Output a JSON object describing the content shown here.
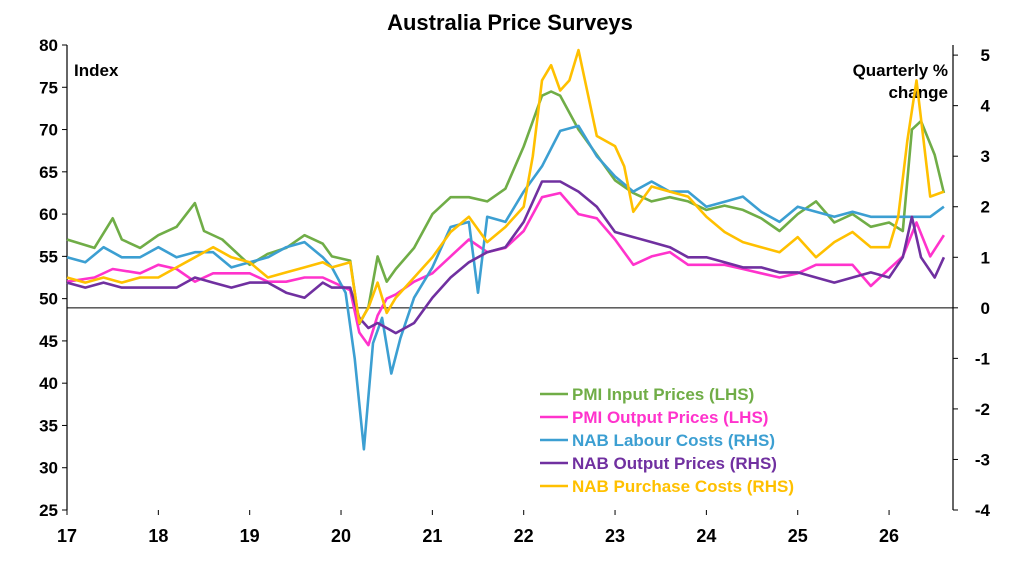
{
  "chart_data": {
    "type": "line",
    "title": "Australia Price Surveys",
    "left_axis_label": "Index",
    "right_axis_label_lines": [
      "Quarterly %",
      "change"
    ],
    "x_ticks": [
      "17",
      "18",
      "19",
      "20",
      "21",
      "22",
      "23",
      "24",
      "25",
      "26"
    ],
    "x_range": [
      2017,
      2026.7
    ],
    "left_ylim": [
      25,
      80
    ],
    "left_yticks": [
      25,
      30,
      35,
      40,
      45,
      50,
      55,
      60,
      65,
      70,
      75,
      80
    ],
    "right_ylim": [
      -4,
      5.2
    ],
    "right_yticks": [
      -4,
      -3,
      -2,
      -1,
      0,
      1,
      2,
      3,
      4,
      5
    ],
    "reference_line_at_right": 0,
    "grid": false,
    "legend_position": "bottom-right",
    "series": [
      {
        "name": "PMI Input Prices (LHS)",
        "axis": "left",
        "color": "#70ad47",
        "x": [
          2017.0,
          2017.3,
          2017.5,
          2017.6,
          2017.8,
          2018.0,
          2018.2,
          2018.4,
          2018.5,
          2018.7,
          2018.9,
          2019.0,
          2019.2,
          2019.4,
          2019.6,
          2019.8,
          2019.9,
          2020.1,
          2020.2,
          2020.3,
          2020.4,
          2020.5,
          2020.6,
          2020.8,
          2021.0,
          2021.2,
          2021.4,
          2021.6,
          2021.8,
          2022.0,
          2022.2,
          2022.3,
          2022.4,
          2022.6,
          2022.8,
          2023.0,
          2023.2,
          2023.4,
          2023.6,
          2023.8,
          2024.0,
          2024.2,
          2024.4,
          2024.6,
          2024.8,
          2025.0,
          2025.2,
          2025.4,
          2025.6,
          2025.8,
          2026.0,
          2026.15,
          2026.25,
          2026.35,
          2026.5,
          2026.6
        ],
        "values": [
          57,
          56,
          59.5,
          57,
          56,
          57.5,
          58.5,
          61.3,
          58,
          57,
          55,
          54,
          55.3,
          56,
          57.5,
          56.5,
          55,
          54.5,
          47,
          49,
          55,
          52,
          53.5,
          56,
          60,
          62,
          62,
          61.5,
          63,
          68,
          74,
          74.5,
          74,
          70,
          67,
          64,
          62.5,
          61.5,
          62,
          61.5,
          60.5,
          61,
          60.5,
          59.5,
          58,
          60,
          61.5,
          59,
          60,
          58.5,
          59,
          58,
          70,
          71,
          67,
          62.5
        ]
      },
      {
        "name": "PMI Output Prices (LHS)",
        "axis": "left",
        "color": "#ff33cc",
        "x": [
          2017.0,
          2017.3,
          2017.5,
          2017.8,
          2018.0,
          2018.2,
          2018.4,
          2018.6,
          2018.8,
          2019.0,
          2019.2,
          2019.4,
          2019.6,
          2019.8,
          2019.9,
          2020.1,
          2020.2,
          2020.3,
          2020.4,
          2020.5,
          2020.6,
          2020.8,
          2021.0,
          2021.2,
          2021.4,
          2021.6,
          2021.8,
          2022.0,
          2022.2,
          2022.4,
          2022.6,
          2022.8,
          2023.0,
          2023.2,
          2023.4,
          2023.6,
          2023.8,
          2024.0,
          2024.2,
          2024.4,
          2024.6,
          2024.8,
          2025.0,
          2025.2,
          2025.4,
          2025.6,
          2025.8,
          2026.0,
          2026.15,
          2026.3,
          2026.45,
          2026.6
        ],
        "values": [
          52,
          52.5,
          53.5,
          53,
          54,
          53.5,
          52,
          53,
          53,
          53,
          52,
          52,
          52.5,
          52.5,
          52,
          51,
          46,
          44.5,
          48,
          50,
          50.5,
          52,
          53,
          55,
          57,
          55.5,
          56,
          58,
          62,
          62.5,
          60,
          59.5,
          57,
          54,
          55,
          55.5,
          54,
          54,
          54,
          53.5,
          53,
          52.5,
          53,
          54,
          54,
          54,
          51.5,
          53.5,
          55,
          59,
          55,
          57.5
        ]
      },
      {
        "name": "NAB Labour Costs (RHS)",
        "axis": "right",
        "color": "#3c9fd2",
        "x": [
          2017.0,
          2017.2,
          2017.4,
          2017.6,
          2017.8,
          2018.0,
          2018.2,
          2018.4,
          2018.6,
          2018.8,
          2019.0,
          2019.2,
          2019.4,
          2019.6,
          2019.8,
          2019.9,
          2020.05,
          2020.15,
          2020.25,
          2020.35,
          2020.45,
          2020.55,
          2020.65,
          2020.8,
          2021.0,
          2021.2,
          2021.4,
          2021.5,
          2021.6,
          2021.8,
          2022.0,
          2022.2,
          2022.4,
          2022.6,
          2022.8,
          2023.0,
          2023.2,
          2023.4,
          2023.6,
          2023.8,
          2024.0,
          2024.2,
          2024.4,
          2024.6,
          2024.8,
          2025.0,
          2025.2,
          2025.4,
          2025.6,
          2025.8,
          2026.0,
          2026.15,
          2026.3,
          2026.45,
          2026.6
        ],
        "values": [
          1.0,
          0.9,
          1.2,
          1.0,
          1.0,
          1.2,
          1.0,
          1.1,
          1.1,
          0.8,
          0.9,
          1.0,
          1.2,
          1.3,
          1.0,
          0.8,
          0.3,
          -1.0,
          -2.8,
          -0.7,
          -0.2,
          -1.3,
          -0.6,
          0.2,
          0.8,
          1.6,
          1.7,
          0.3,
          1.8,
          1.7,
          2.3,
          2.8,
          3.5,
          3.6,
          3.0,
          2.6,
          2.3,
          2.5,
          2.3,
          2.3,
          2.0,
          2.1,
          2.2,
          1.9,
          1.7,
          2.0,
          1.9,
          1.8,
          1.9,
          1.8,
          1.8,
          1.8,
          1.8,
          1.8,
          2.0
        ]
      },
      {
        "name": "NAB Output Prices (RHS)",
        "axis": "right",
        "color": "#7030a0",
        "x": [
          2017.0,
          2017.2,
          2017.4,
          2017.6,
          2017.8,
          2018.0,
          2018.2,
          2018.4,
          2018.6,
          2018.8,
          2019.0,
          2019.2,
          2019.4,
          2019.6,
          2019.8,
          2019.9,
          2020.1,
          2020.2,
          2020.3,
          2020.4,
          2020.5,
          2020.6,
          2020.8,
          2021.0,
          2021.2,
          2021.4,
          2021.6,
          2021.8,
          2022.0,
          2022.2,
          2022.4,
          2022.6,
          2022.8,
          2023.0,
          2023.2,
          2023.4,
          2023.6,
          2023.8,
          2024.0,
          2024.2,
          2024.4,
          2024.6,
          2024.8,
          2025.0,
          2025.2,
          2025.4,
          2025.6,
          2025.8,
          2026.0,
          2026.15,
          2026.25,
          2026.35,
          2026.5,
          2026.6
        ],
        "values": [
          0.5,
          0.4,
          0.5,
          0.4,
          0.4,
          0.4,
          0.4,
          0.6,
          0.5,
          0.4,
          0.5,
          0.5,
          0.3,
          0.2,
          0.5,
          0.4,
          0.4,
          -0.2,
          -0.4,
          -0.3,
          -0.4,
          -0.5,
          -0.3,
          0.2,
          0.6,
          0.9,
          1.1,
          1.2,
          1.7,
          2.5,
          2.5,
          2.3,
          2.0,
          1.5,
          1.4,
          1.3,
          1.2,
          1.0,
          1.0,
          0.9,
          0.8,
          0.8,
          0.7,
          0.7,
          0.6,
          0.5,
          0.6,
          0.7,
          0.6,
          1.0,
          1.8,
          1.0,
          0.6,
          1.0
        ]
      },
      {
        "name": "NAB Purchase Costs (RHS)",
        "axis": "right",
        "color": "#ffc000",
        "x": [
          2017.0,
          2017.2,
          2017.4,
          2017.6,
          2017.8,
          2018.0,
          2018.2,
          2018.4,
          2018.6,
          2018.8,
          2019.0,
          2019.2,
          2019.4,
          2019.6,
          2019.8,
          2019.9,
          2020.1,
          2020.2,
          2020.3,
          2020.4,
          2020.5,
          2020.6,
          2020.8,
          2021.0,
          2021.2,
          2021.4,
          2021.6,
          2021.8,
          2022.0,
          2022.1,
          2022.2,
          2022.3,
          2022.4,
          2022.5,
          2022.6,
          2022.8,
          2023.0,
          2023.1,
          2023.2,
          2023.4,
          2023.6,
          2023.8,
          2024.0,
          2024.2,
          2024.4,
          2024.6,
          2024.8,
          2025.0,
          2025.2,
          2025.4,
          2025.6,
          2025.8,
          2026.0,
          2026.1,
          2026.2,
          2026.3,
          2026.45,
          2026.6
        ],
        "values": [
          0.6,
          0.5,
          0.6,
          0.5,
          0.6,
          0.6,
          0.8,
          1.0,
          1.2,
          1.0,
          0.9,
          0.6,
          0.7,
          0.8,
          0.9,
          0.8,
          0.9,
          -0.3,
          0.0,
          0.5,
          -0.1,
          0.2,
          0.6,
          1.0,
          1.5,
          1.8,
          1.3,
          1.6,
          2.0,
          3.0,
          4.5,
          4.8,
          4.3,
          4.5,
          5.1,
          3.4,
          3.2,
          2.8,
          1.9,
          2.4,
          2.3,
          2.2,
          1.8,
          1.5,
          1.3,
          1.2,
          1.1,
          1.4,
          1.0,
          1.3,
          1.5,
          1.2,
          1.2,
          1.8,
          3.3,
          4.5,
          2.2,
          2.3
        ]
      }
    ]
  }
}
